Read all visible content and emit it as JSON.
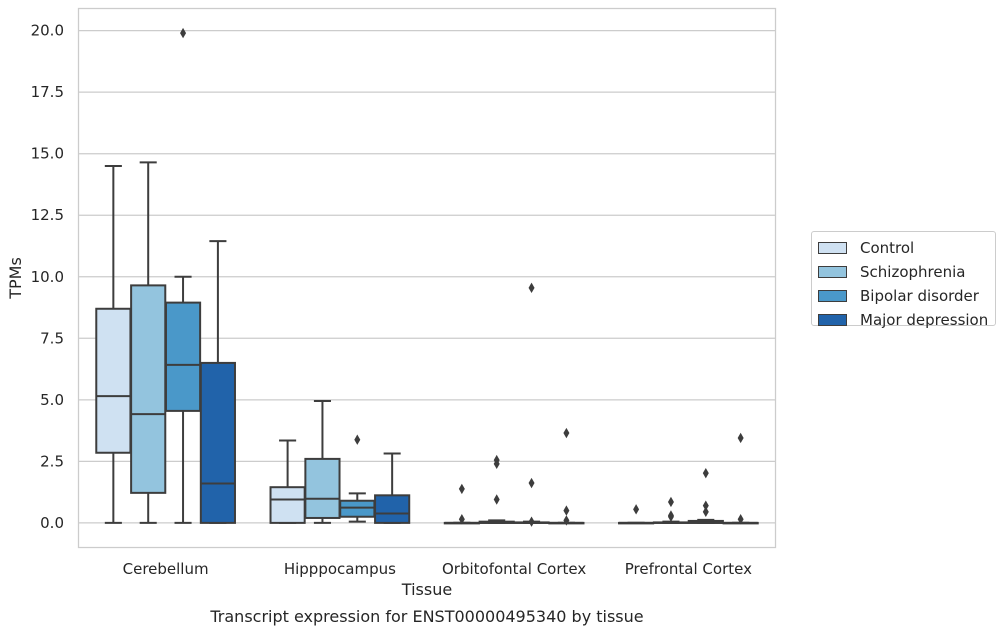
{
  "chart_data": {
    "type": "box",
    "title": "Transcript expression for ENST00000495340 by tissue",
    "xlabel": "Tissue",
    "ylabel": "TPMs",
    "ylim": [
      -1.0,
      20.9
    ],
    "yticks": [
      "0.0",
      "2.5",
      "5.0",
      "7.5",
      "10.0",
      "12.5",
      "15.0",
      "17.5",
      "20.0"
    ],
    "ytick_values": [
      0,
      2.5,
      5,
      7.5,
      10,
      12.5,
      15,
      17.5,
      20
    ],
    "grid": "horizontal",
    "legend_position": "outside-right",
    "categories": [
      "Cerebellum",
      "Hipppocampus",
      "Orbitofontal Cortex",
      "Prefrontal Cortex"
    ],
    "series": [
      {
        "name": "Control",
        "color": "#cfe1f2",
        "boxes": [
          {
            "whislo": 0.0,
            "q1": 2.85,
            "med": 5.15,
            "q3": 8.7,
            "whishi": 14.5,
            "fliers": []
          },
          {
            "whislo": 0.0,
            "q1": 0.0,
            "med": 0.95,
            "q3": 1.45,
            "whishi": 3.35,
            "fliers": []
          },
          {
            "whislo": 0.0,
            "q1": 0.0,
            "med": 0.0,
            "q3": 0.0,
            "whishi": 0.0,
            "fliers": [
              0.15,
              1.38
            ]
          },
          {
            "whislo": 0.0,
            "q1": 0.0,
            "med": 0.0,
            "q3": 0.0,
            "whishi": 0.0,
            "fliers": [
              0.55
            ]
          }
        ]
      },
      {
        "name": "Schizophrenia",
        "color": "#93c4de",
        "boxes": [
          {
            "whislo": 0.0,
            "q1": 1.22,
            "med": 4.42,
            "q3": 9.65,
            "whishi": 14.65,
            "fliers": []
          },
          {
            "whislo": 0.0,
            "q1": 0.2,
            "med": 0.98,
            "q3": 2.6,
            "whishi": 4.95,
            "fliers": []
          },
          {
            "whislo": 0.0,
            "q1": 0.0,
            "med": 0.0,
            "q3": 0.05,
            "whishi": 0.1,
            "fliers": [
              0.95,
              2.4,
              2.55
            ]
          },
          {
            "whislo": 0.0,
            "q1": 0.0,
            "med": 0.0,
            "q3": 0.02,
            "whishi": 0.05,
            "fliers": [
              0.25,
              0.3,
              0.85
            ]
          }
        ]
      },
      {
        "name": "Bipolar disorder",
        "color": "#4a98c9",
        "boxes": [
          {
            "whislo": 0.0,
            "q1": 4.55,
            "med": 6.42,
            "q3": 8.95,
            "whishi": 10.0,
            "fliers": [
              19.9
            ]
          },
          {
            "whislo": 0.05,
            "q1": 0.25,
            "med": 0.62,
            "q3": 0.9,
            "whishi": 1.2,
            "fliers": [
              3.38
            ]
          },
          {
            "whislo": 0.0,
            "q1": 0.0,
            "med": 0.0,
            "q3": 0.02,
            "whishi": 0.05,
            "fliers": [
              0.05,
              1.62,
              9.55
            ]
          },
          {
            "whislo": 0.0,
            "q1": 0.0,
            "med": 0.0,
            "q3": 0.08,
            "whishi": 0.12,
            "fliers": [
              0.45,
              0.7,
              2.02
            ]
          }
        ]
      },
      {
        "name": "Major depression",
        "color": "#2163aa",
        "boxes": [
          {
            "whislo": 0.0,
            "q1": 0.0,
            "med": 1.6,
            "q3": 6.5,
            "whishi": 11.45,
            "fliers": []
          },
          {
            "whislo": 0.0,
            "q1": 0.0,
            "med": 0.38,
            "q3": 1.12,
            "whishi": 2.82,
            "fliers": []
          },
          {
            "whislo": 0.0,
            "q1": 0.0,
            "med": 0.0,
            "q3": 0.0,
            "whishi": 0.0,
            "fliers": [
              0.1,
              0.5,
              3.65
            ]
          },
          {
            "whislo": 0.0,
            "q1": 0.0,
            "med": 0.0,
            "q3": 0.0,
            "whishi": 0.0,
            "fliers": [
              0.15,
              3.45
            ]
          }
        ]
      }
    ]
  }
}
